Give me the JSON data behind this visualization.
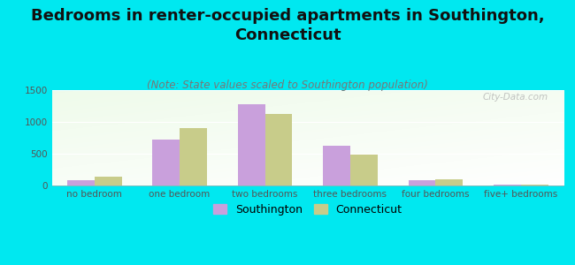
{
  "title": "Bedrooms in renter-occupied apartments in Southington,\nConnecticut",
  "subtitle": "(Note: State values scaled to Southington population)",
  "categories": [
    "no bedroom",
    "one bedroom",
    "two bedrooms",
    "three bedrooms",
    "four bedrooms",
    "five+ bedrooms"
  ],
  "southington_values": [
    80,
    720,
    1280,
    620,
    80,
    12
  ],
  "connecticut_values": [
    145,
    900,
    1120,
    490,
    100,
    18
  ],
  "southington_color": "#c9a0dc",
  "connecticut_color": "#c8cc8a",
  "bg_color": "#00e8f0",
  "ylim": [
    0,
    1500
  ],
  "yticks": [
    0,
    500,
    1000,
    1500
  ],
  "bar_width": 0.32,
  "title_fontsize": 13,
  "subtitle_fontsize": 8.5,
  "tick_fontsize": 7.5,
  "legend_fontsize": 9,
  "watermark": "City-Data.com"
}
